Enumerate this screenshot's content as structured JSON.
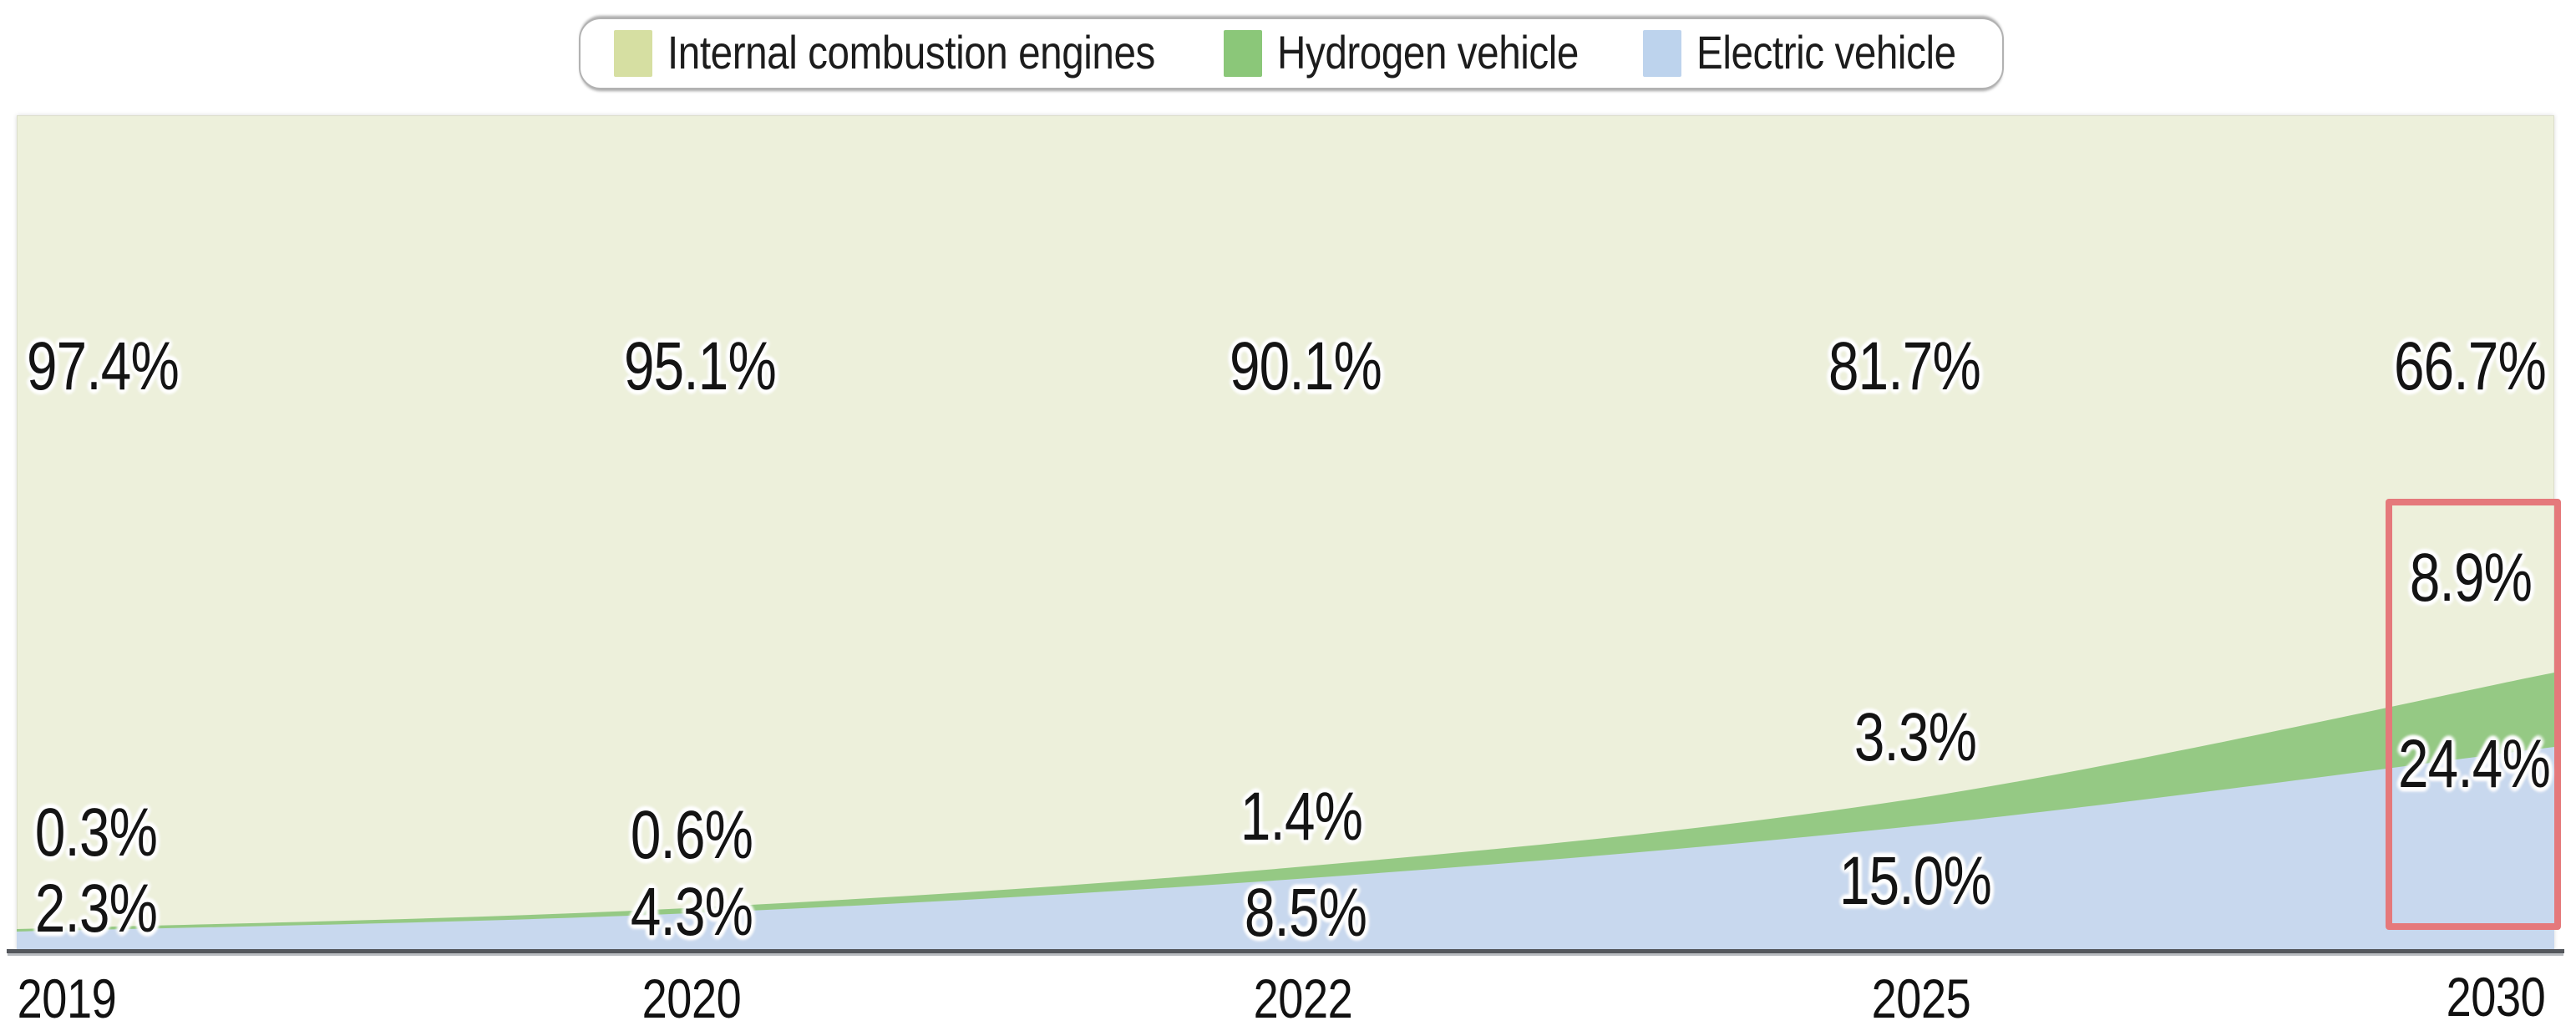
{
  "legend": {
    "items": [
      {
        "label": "Internal combustion engines",
        "color": "#d6dfa2"
      },
      {
        "label": "Hydrogen vehicle",
        "color": "#8bc779"
      },
      {
        "label": "Electric vehicle",
        "color": "#bdd3ed"
      }
    ]
  },
  "chart_data": {
    "type": "area",
    "stacked": true,
    "categories": [
      "2019",
      "2020",
      "2022",
      "2025",
      "2030"
    ],
    "series": [
      {
        "name": "Electric vehicle",
        "color": "#c8d8ee",
        "values": [
          2.3,
          4.3,
          8.5,
          15.0,
          24.4
        ]
      },
      {
        "name": "Hydrogen vehicle",
        "color": "#95c984",
        "values": [
          0.3,
          0.6,
          1.4,
          3.3,
          8.9
        ]
      },
      {
        "name": "Internal combustion engines",
        "color": "#edf0db",
        "values": [
          97.4,
          95.1,
          90.1,
          81.7,
          66.7
        ]
      }
    ],
    "value_labels": {
      "ice": [
        "97.4%",
        "95.1%",
        "90.1%",
        "81.7%",
        "66.7%"
      ],
      "h2": [
        "0.3%",
        "0.6%",
        "1.4%",
        "3.3%",
        "8.9%"
      ],
      "ev": [
        "2.3%",
        "4.3%",
        "8.5%",
        "15.0%",
        "24.4%"
      ]
    },
    "ylim": [
      0,
      100
    ],
    "legend_position": "top",
    "axis_color": "#54575c",
    "highlight": {
      "category": "2030",
      "highlighted_values": [
        "8.9%",
        "24.4%"
      ],
      "box_color": "#e5797b"
    }
  }
}
